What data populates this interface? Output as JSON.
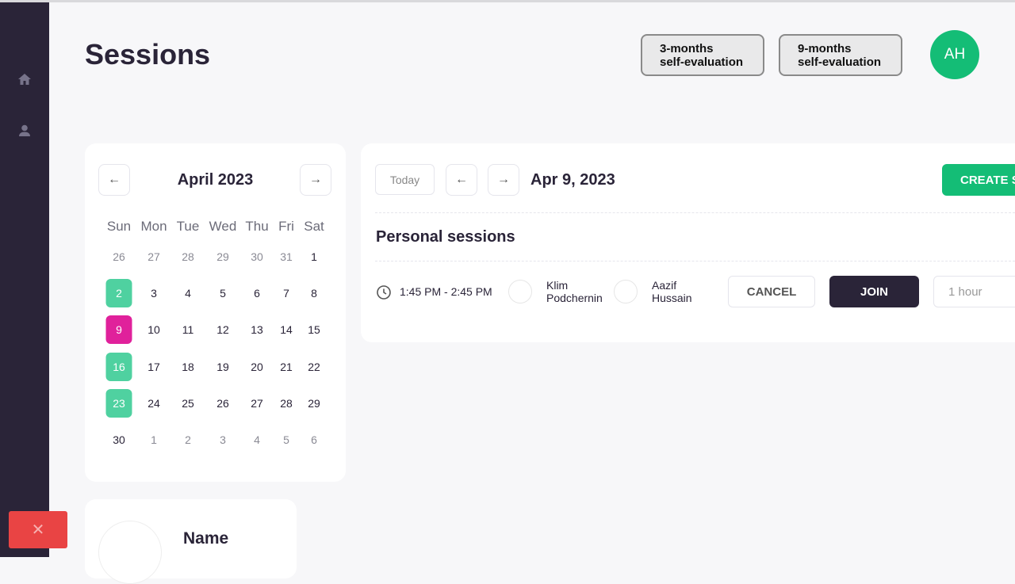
{
  "header": {
    "title": "Sessions",
    "eval_3": "3-months self-evaluation",
    "eval_3_l1": "3-months",
    "eval_3_l2": "self-evaluation",
    "eval_9_l1": "9-months",
    "eval_9_l2": "self-evaluation",
    "avatar": "AH",
    "accent": "#14bd76"
  },
  "sidebar": {
    "items": [
      {
        "icon": "home-icon"
      },
      {
        "icon": "user-icon"
      }
    ]
  },
  "calendar": {
    "month": "April 2023",
    "weekdays": [
      "Sun",
      "Mon",
      "Tue",
      "Wed",
      "Thu",
      "Fri",
      "Sat"
    ],
    "weeks": [
      [
        "26",
        "27",
        "28",
        "29",
        "30",
        "31",
        "1"
      ],
      [
        "2",
        "3",
        "4",
        "5",
        "6",
        "7",
        "8"
      ],
      [
        "9",
        "10",
        "11",
        "12",
        "13",
        "14",
        "15"
      ],
      [
        "16",
        "17",
        "18",
        "19",
        "20",
        "21",
        "22"
      ],
      [
        "23",
        "24",
        "25",
        "26",
        "27",
        "28",
        "29"
      ],
      [
        "30",
        "1",
        "2",
        "3",
        "4",
        "5",
        "6"
      ]
    ],
    "selected": "9",
    "highlighted": [
      "2",
      "16",
      "23"
    ]
  },
  "sessions": {
    "today": "Today",
    "date": "Apr 9, 2023",
    "create": "CREATE S",
    "section": "Personal sessions",
    "items": [
      {
        "time": "1:45 PM - 2:45 PM",
        "participants": [
          {
            "first": "Klim",
            "last": "Podchernin"
          },
          {
            "first": "Aazif",
            "last": "Hussain"
          }
        ],
        "cancel": "CANCEL",
        "join": "JOIN",
        "duration": "1 hour"
      }
    ]
  },
  "profile": {
    "name_label": "Name"
  }
}
